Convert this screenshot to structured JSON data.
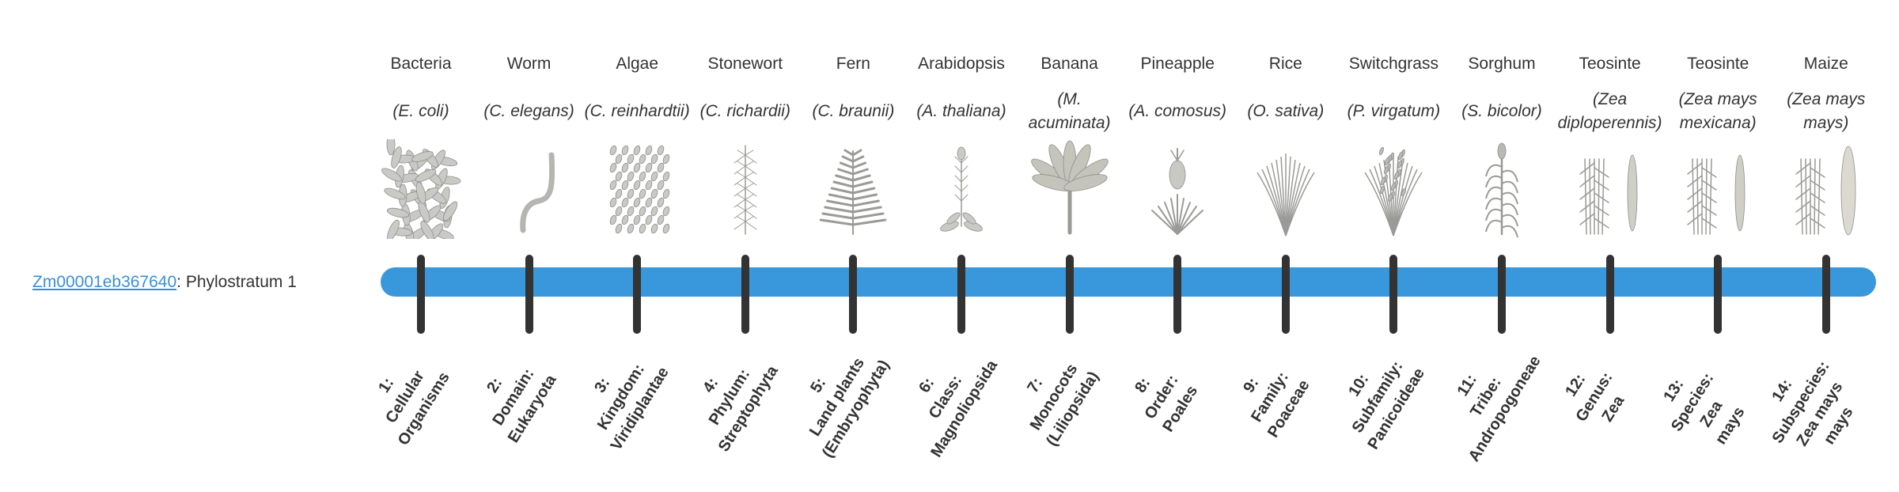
{
  "gene": {
    "id": "Zm00001eb367640",
    "suffix": ": Phylostratum 1"
  },
  "colors": {
    "bar": "#3898db",
    "tick": "#333333",
    "link": "#3a8fd9",
    "illustration": "#9a9a96"
  },
  "organisms": [
    {
      "common": "Bacteria",
      "species": "(E. coli)",
      "rank": "1:\nCellular\nOrganisms",
      "icon": "bacteria-icon"
    },
    {
      "common": "Worm",
      "species": "(C. elegans)",
      "rank": "2:\nDomain:\nEukaryota",
      "icon": "worm-icon"
    },
    {
      "common": "Algae",
      "species": "(C. reinhardtii)",
      "rank": "3:\nKingdom:\nViridiplantae",
      "icon": "algae-icon"
    },
    {
      "common": "Stonewort",
      "species": "(C. richardii)",
      "rank": "4:\nPhylum:\nStreptophyta",
      "icon": "stonewort-icon"
    },
    {
      "common": "Fern",
      "species": "(C. braunii)",
      "rank": "5:\nLand plants\n(Embryophyta)",
      "icon": "fern-icon"
    },
    {
      "common": "Arabidopsis",
      "species": "(A. thaliana)",
      "rank": "6:\nClass:\nMagnoliopsida",
      "icon": "arabidopsis-icon"
    },
    {
      "common": "Banana",
      "species": "(M. acuminata)",
      "rank": "7:\nMonocots\n(Liliopsida)",
      "icon": "banana-icon"
    },
    {
      "common": "Pineapple",
      "species": "(A. comosus)",
      "rank": "8:\nOrder:\nPoales",
      "icon": "pineapple-icon"
    },
    {
      "common": "Rice",
      "species": "(O. sativa)",
      "rank": "9:\nFamily:\nPoaceae",
      "icon": "rice-icon"
    },
    {
      "common": "Switchgrass",
      "species": "(P. virgatum)",
      "rank": "10:\nSubfamily:\nPanicoideae",
      "icon": "switchgrass-icon"
    },
    {
      "common": "Sorghum",
      "species": "(S. bicolor)",
      "rank": "11:\nTribe:\nAndropogoneae",
      "icon": "sorghum-icon"
    },
    {
      "common": "Teosinte",
      "species": "(Zea diploperennis)",
      "rank": "12:\nGenus:\nZea",
      "icon": "teosinte-icon"
    },
    {
      "common": "Teosinte",
      "species": "(Zea mays mexicana)",
      "rank": "13:\nSpecies:\nZea\nmays",
      "icon": "teosinte-icon"
    },
    {
      "common": "Maize",
      "species": "(Zea mays mays)",
      "rank": "14:\nSubspecies:\nZea mays\nmays",
      "icon": "maize-icon"
    }
  ]
}
